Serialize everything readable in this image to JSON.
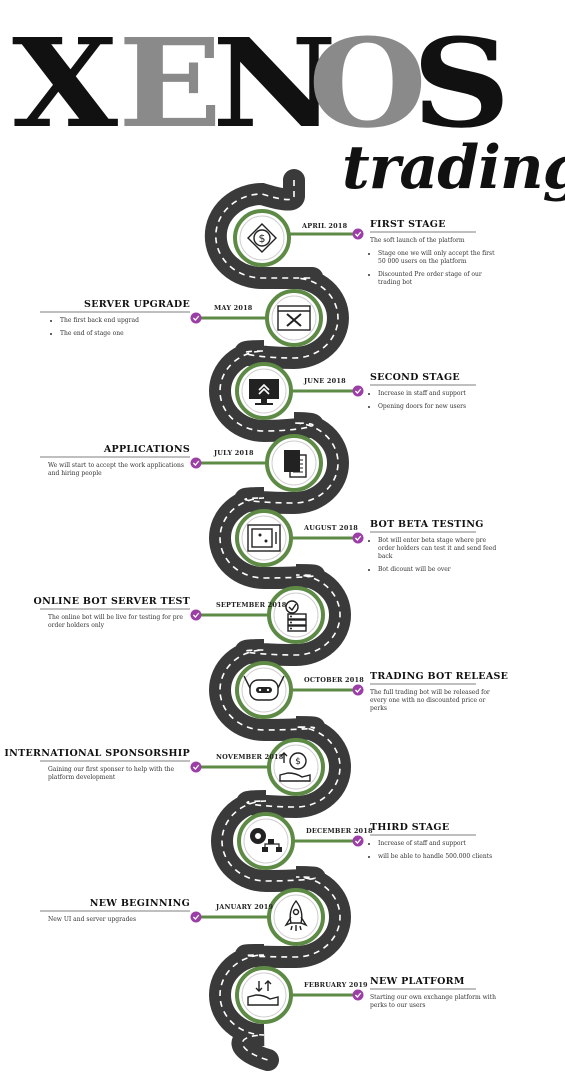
{
  "logo": {
    "letters": [
      {
        "char": "X",
        "color": "#111111"
      },
      {
        "char": "E",
        "color": "#8a8a8a"
      },
      {
        "char": "N",
        "color": "#111111"
      },
      {
        "char": "O",
        "color": "#8a8a8a"
      },
      {
        "char": "S",
        "color": "#111111"
      }
    ],
    "script": "trading"
  },
  "colors": {
    "road": "#3a3a3a",
    "dash": "#ffffff",
    "ring": "#5d8a45",
    "check": "#9b3fa6"
  },
  "milestones": [
    {
      "date": "APRIL 2018",
      "title": "FIRST STAGE",
      "icon": "dollar-icon",
      "side": "right",
      "lead": "The soft launch of the platform",
      "bullets": [
        "Stage one we will only accept the first 50 000 users on the platform",
        "Discounted Pre order stage of our trading bot"
      ]
    },
    {
      "date": "MAY 2018",
      "title": "SERVER UPGRADE",
      "icon": "tools-icon",
      "side": "left",
      "lead": "",
      "bullets": [
        "The first back end upgrad",
        "The end of stage one"
      ]
    },
    {
      "date": "JUNE 2018",
      "title": "SECOND STAGE",
      "icon": "monitor-upgrade-icon",
      "side": "right",
      "lead": "",
      "bullets": [
        "Increase in staff and support",
        "Opening doors for new users"
      ]
    },
    {
      "date": "JULY 2018",
      "title": "APPLICATIONS",
      "icon": "documents-icon",
      "side": "left",
      "lead": "We will start to accept the work applications and hiring people",
      "bullets": []
    },
    {
      "date": "AUGUST 2018",
      "title": "BOT BETA TESTING",
      "icon": "safe-icon",
      "side": "right",
      "lead": "",
      "bullets": [
        "Bot will enter beta stage where pre order holders can test it and send feed back",
        "Bot dicount will be over"
      ]
    },
    {
      "date": "SEPTEMBER 2018",
      "title": "ONLINE BOT SERVER TEST",
      "icon": "server-icon",
      "side": "left",
      "lead": "The online bot will be live for testing for pre order holders only",
      "bullets": []
    },
    {
      "date": "OCTOBER 2018",
      "title": "TRADING BOT RELEASE",
      "icon": "robot-icon",
      "side": "right",
      "lead": "The full trading bot will be released for every one with no discounted price or perks",
      "bullets": []
    },
    {
      "date": "NOVEMBER 2018",
      "title": "INTERNATIONAL SPONSORSHIP",
      "icon": "money-hand-icon",
      "side": "left",
      "lead": "Gaining our first sponser to help with the platform development",
      "bullets": []
    },
    {
      "date": "DECEMBER 2018",
      "title": "THIRD STAGE",
      "icon": "network-gear-icon",
      "side": "right",
      "lead": "",
      "bullets": [
        "Increase of staff and support",
        "will be able to handle 500.000 clients"
      ]
    },
    {
      "date": "JANUARY 2019",
      "title": "NEW BEGINNING",
      "icon": "rocket-icon",
      "side": "left",
      "lead": "New UI and server upgrades",
      "bullets": []
    },
    {
      "date": "FEBRUARY 2019",
      "title": "NEW PLATFORM",
      "icon": "exchange-hand-icon",
      "side": "right",
      "lead": "Starting our own exchange platform with perks to our users",
      "bullets": []
    }
  ]
}
